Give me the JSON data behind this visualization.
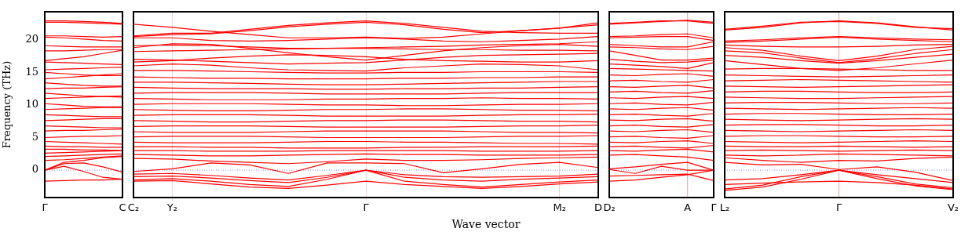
{
  "chart_data": [
    {
      "type": "line",
      "ylabel": "Frequency (THz)",
      "categories": [
        "Γ",
        null,
        null,
        null,
        "C"
      ],
      "ylim": [
        -4.2,
        24.3
      ],
      "yticks": [
        0,
        5,
        10,
        15,
        20
      ],
      "marker": "none",
      "ref_lines": [
        {
          "axis": "y",
          "value": 0,
          "color": "#8080ff",
          "line_style": "dotted"
        }
      ],
      "series": [
        {
          "color": "#ff0000",
          "values": [
            22.9,
            22.9,
            22.8,
            22.7,
            22.5
          ]
        },
        {
          "color": "#ff0000",
          "values": [
            22.7,
            22.7,
            22.6,
            22.5,
            22.4
          ]
        },
        {
          "color": "#ff0000",
          "values": [
            20.6,
            20.6,
            20.5,
            20.4,
            20.5
          ]
        },
        {
          "color": "#ff0000",
          "values": [
            20.4,
            20.3,
            20.1,
            19.9,
            19.8
          ]
        },
        {
          "color": "#ff0000",
          "values": [
            19.1,
            19.0,
            18.9,
            18.9,
            18.9
          ]
        },
        {
          "color": "#ff0000",
          "values": [
            18.3,
            18.3,
            18.4,
            18.5,
            18.5
          ]
        },
        {
          "color": "#ff0000",
          "values": [
            16.8,
            17.1,
            17.4,
            17.9,
            18.4
          ]
        },
        {
          "color": "#ff0000",
          "values": [
            16.6,
            16.5,
            16.4,
            16.3,
            16.2
          ]
        },
        {
          "color": "#ff0000",
          "values": [
            15.4,
            15.5,
            15.6,
            15.7,
            15.8
          ]
        },
        {
          "color": "#ff0000",
          "values": [
            15.0,
            14.8,
            14.6,
            14.5,
            14.5
          ]
        },
        {
          "color": "#ff0000",
          "values": [
            14.0,
            14.2,
            14.4,
            14.6,
            14.8
          ]
        },
        {
          "color": "#ff0000",
          "values": [
            13.4,
            13.2,
            13.0,
            12.9,
            12.9
          ]
        },
        {
          "color": "#ff0000",
          "values": [
            12.5,
            12.6,
            12.6,
            12.7,
            12.8
          ]
        },
        {
          "color": "#ff0000",
          "values": [
            11.8,
            11.6,
            11.4,
            11.3,
            11.2
          ]
        },
        {
          "color": "#ff0000",
          "values": [
            11.0,
            11.1,
            11.2,
            11.3,
            11.4
          ]
        },
        {
          "color": "#ff0000",
          "values": [
            10.2,
            10.0,
            9.8,
            9.7,
            9.7
          ]
        },
        {
          "color": "#ff0000",
          "values": [
            9.3,
            9.4,
            9.5,
            9.6,
            9.6
          ]
        },
        {
          "color": "#ff0000",
          "values": [
            8.5,
            8.4,
            8.3,
            8.2,
            8.2
          ]
        },
        {
          "color": "#ff0000",
          "values": [
            7.6,
            7.7,
            7.8,
            7.9,
            7.9
          ]
        },
        {
          "color": "#ff0000",
          "values": [
            6.8,
            6.7,
            6.6,
            6.5,
            6.5
          ]
        },
        {
          "color": "#ff0000",
          "values": [
            6.0,
            6.1,
            6.1,
            6.2,
            6.3
          ]
        },
        {
          "color": "#ff0000",
          "values": [
            5.0,
            5.1,
            5.2,
            5.2,
            5.3
          ]
        },
        {
          "color": "#ff0000",
          "values": [
            4.4,
            4.3,
            4.2,
            4.1,
            4.0
          ]
        },
        {
          "color": "#ff0000",
          "values": [
            3.7,
            3.6,
            3.6,
            3.5,
            3.5
          ]
        },
        {
          "color": "#ff0000",
          "values": [
            3.2,
            3.2,
            3.1,
            3.1,
            3.0
          ]
        },
        {
          "color": "#ff0000",
          "values": [
            2.6,
            2.7,
            2.8,
            2.9,
            3.0
          ]
        },
        {
          "color": "#ff0000",
          "values": [
            2.1,
            2.2,
            2.3,
            2.4,
            2.5
          ]
        },
        {
          "color": "#ff0000",
          "values": [
            1.5,
            1.6,
            1.8,
            2.0,
            2.2
          ]
        },
        {
          "color": "#ff0000",
          "values": [
            0,
            1.2,
            1.5,
            1.9,
            2.1
          ]
        },
        {
          "color": "#ff0000",
          "values": [
            0,
            1.0,
            1.1,
            0.5,
            -0.3
          ]
        },
        {
          "color": "#ff0000",
          "values": [
            0,
            0.6,
            -0.2,
            -1.1,
            -1.4
          ]
        },
        {
          "color": "#ff0000",
          "values": [
            -1.7,
            -1.6,
            -1.5,
            -1.5,
            -1.4
          ]
        }
      ]
    },
    {
      "type": "line",
      "xlabel": "Wave vector",
      "categories": [
        "C₂",
        "Y₂",
        null,
        null,
        null,
        null,
        "Γ",
        null,
        null,
        null,
        null,
        "M₂",
        "D"
      ],
      "ylim": [
        -4.2,
        24.3
      ],
      "tick_labels": "x",
      "grid": "x",
      "marker": "none",
      "ref_lines": [
        {
          "axis": "y",
          "value": 0,
          "color": "#8080ff",
          "line_style": "dotted"
        }
      ],
      "series": [
        {
          "color": "#ff0000",
          "values": [
            22.4,
            21.9,
            21.3,
            20.8,
            20.3,
            20.3,
            20.4,
            20.2,
            20.4,
            20.9,
            21.4,
            21.8,
            22.3
          ]
        },
        {
          "color": "#ff0000",
          "values": [
            20.6,
            21.0,
            21.0,
            21.6,
            22.2,
            22.6,
            22.9,
            22.5,
            21.9,
            21.3,
            21.1,
            21.0,
            21.0
          ]
        },
        {
          "color": "#ff0000",
          "values": [
            20.5,
            20.8,
            20.9,
            21.4,
            22.0,
            22.4,
            22.7,
            22.3,
            21.6,
            21.1,
            21.4,
            21.8,
            22.6
          ]
        },
        {
          "color": "#ff0000",
          "values": [
            20.3,
            20.3,
            19.9,
            19.8,
            19.9,
            20.1,
            20.3,
            20.1,
            19.8,
            19.7,
            19.9,
            20.1,
            20.5
          ]
        },
        {
          "color": "#ff0000",
          "values": [
            18.8,
            19.4,
            19.3,
            18.7,
            18.0,
            17.4,
            16.9,
            17.6,
            18.3,
            18.8,
            19.1,
            19.3,
            19.0
          ]
        },
        {
          "color": "#ff0000",
          "values": [
            19.1,
            19.2,
            19.1,
            18.9,
            18.7,
            18.7,
            18.8,
            18.9,
            19.0,
            19.2,
            19.3,
            19.4,
            19.7
          ]
        },
        {
          "color": "#ff0000",
          "values": [
            18.2,
            18.3,
            18.4,
            18.5,
            18.6,
            18.7,
            18.7,
            18.6,
            18.5,
            18.5,
            18.4,
            18.4,
            18.3
          ]
        },
        {
          "color": "#ff0000",
          "values": [
            16.6,
            16.8,
            17.2,
            17.5,
            17.7,
            17.6,
            17.4,
            17.0,
            16.8,
            16.7,
            16.6,
            16.6,
            16.8
          ]
        },
        {
          "color": "#ff0000",
          "values": [
            17.0,
            16.9,
            16.7,
            16.5,
            16.3,
            16.4,
            16.5,
            16.9,
            17.3,
            17.6,
            17.7,
            17.8,
            17.9
          ]
        },
        {
          "color": "#ff0000",
          "values": [
            16.0,
            16.3,
            16.1,
            15.7,
            15.4,
            15.3,
            15.2,
            15.7,
            16.0,
            16.3,
            16.2,
            16.0,
            15.4
          ]
        },
        {
          "color": "#ff0000",
          "values": [
            15.3,
            15.3,
            15.2,
            15.1,
            15.0,
            14.9,
            14.9,
            15.0,
            15.0,
            15.1,
            15.1,
            15.1,
            15.0
          ]
        },
        {
          "color": "#ff0000",
          "values": [
            14.3,
            14.2,
            14.1,
            14.1,
            14.0,
            14.0,
            14.0,
            14.1,
            14.1,
            14.2,
            14.2,
            14.3,
            14.3
          ]
        },
        {
          "color": "#ff0000",
          "values": [
            13.5,
            13.5,
            13.4,
            13.3,
            13.2,
            13.1,
            13.1,
            13.2,
            13.3,
            13.4,
            13.5,
            13.6,
            13.6
          ]
        },
        {
          "color": "#ff0000",
          "values": [
            12.7,
            12.6,
            12.5,
            12.5,
            12.5,
            12.4,
            12.4,
            12.5,
            12.5,
            12.6,
            12.6,
            12.7,
            12.8
          ]
        },
        {
          "color": "#ff0000",
          "values": [
            11.8,
            11.9,
            11.9,
            11.9,
            11.8,
            11.7,
            11.7,
            11.7,
            11.7,
            11.8,
            11.9,
            11.9,
            11.9
          ]
        },
        {
          "color": "#ff0000",
          "values": [
            11.0,
            10.9,
            10.8,
            10.8,
            10.8,
            10.9,
            10.9,
            11.0,
            11.0,
            11.1,
            11.0,
            11.0,
            10.9
          ]
        },
        {
          "color": "#ff0000",
          "values": [
            10.1,
            10.2,
            10.2,
            10.2,
            10.1,
            10.0,
            10.0,
            9.9,
            9.9,
            10.0,
            10.1,
            10.1,
            10.2
          ]
        },
        {
          "color": "#ff0000",
          "values": [
            9.3,
            9.2,
            9.1,
            9.1,
            9.2,
            9.3,
            9.3,
            9.4,
            9.4,
            9.3,
            9.2,
            9.2,
            9.1
          ]
        },
        {
          "color": "#ff0000",
          "values": [
            8.4,
            8.5,
            8.5,
            8.5,
            8.4,
            8.3,
            8.3,
            8.3,
            8.3,
            8.4,
            8.5,
            8.5,
            8.6
          ]
        },
        {
          "color": "#ff0000",
          "values": [
            7.6,
            7.5,
            7.4,
            7.4,
            7.5,
            7.6,
            7.6,
            7.7,
            7.7,
            7.6,
            7.5,
            7.5,
            7.4
          ]
        },
        {
          "color": "#ff0000",
          "values": [
            6.7,
            6.8,
            6.8,
            6.8,
            6.7,
            6.6,
            6.6,
            6.6,
            6.6,
            6.7,
            6.8,
            6.8,
            6.9
          ]
        },
        {
          "color": "#ff0000",
          "values": [
            5.9,
            5.8,
            5.8,
            5.8,
            5.9,
            6.0,
            6.0,
            6.0,
            6.0,
            5.9,
            5.8,
            5.8,
            5.7
          ]
        },
        {
          "color": "#ff0000",
          "values": [
            5.1,
            5.2,
            5.2,
            5.2,
            5.1,
            5.0,
            5.0,
            5.0,
            5.0,
            5.1,
            5.2,
            5.2,
            5.3
          ]
        },
        {
          "color": "#ff0000",
          "values": [
            4.3,
            4.2,
            4.2,
            4.2,
            4.3,
            4.4,
            4.4,
            4.3,
            4.3,
            4.2,
            4.1,
            4.1,
            4.0
          ]
        },
        {
          "color": "#ff0000",
          "values": [
            3.6,
            3.6,
            3.5,
            3.5,
            3.4,
            3.4,
            3.4,
            3.5,
            3.5,
            3.6,
            3.6,
            3.6,
            3.7
          ]
        },
        {
          "color": "#ff0000",
          "values": [
            3.0,
            3.0,
            2.9,
            2.9,
            2.9,
            3.0,
            3.0,
            3.0,
            3.0,
            2.9,
            2.9,
            2.9,
            3.0
          ]
        },
        {
          "color": "#ff0000",
          "values": [
            2.4,
            2.3,
            2.2,
            2.2,
            2.3,
            2.4,
            2.5,
            2.4,
            2.4,
            2.3,
            2.3,
            2.3,
            2.4
          ]
        },
        {
          "color": "#ff0000",
          "values": [
            1.8,
            1.7,
            1.4,
            1.2,
            1.0,
            1.3,
            1.7,
            1.5,
            1.5,
            1.6,
            1.8,
            1.9,
            2.0
          ]
        },
        {
          "color": "#ff0000",
          "values": [
            -0.2,
            0.2,
            1.1,
            0.8,
            -0.5,
            1.1,
            1.1,
            1.0,
            -0.4,
            0.2,
            0.9,
            1.2,
            0.4
          ]
        },
        {
          "color": "#ff0000",
          "values": [
            -0.6,
            -0.5,
            -0.8,
            -1.2,
            -1.5,
            -0.8,
            0.0,
            -0.7,
            -1.0,
            -1.1,
            -1.0,
            -0.9,
            -0.6
          ]
        },
        {
          "color": "#ff0000",
          "values": [
            -1.0,
            -0.9,
            -1.2,
            -1.6,
            -1.9,
            -1.1,
            0.0,
            -1.1,
            -1.5,
            -1.7,
            -1.4,
            -1.2,
            -1.0
          ]
        },
        {
          "color": "#ff0000",
          "values": [
            -1.5,
            -1.3,
            -1.7,
            -2.2,
            -2.5,
            -1.4,
            0.0,
            -1.7,
            -2.2,
            -2.6,
            -2.2,
            -1.8,
            -1.5
          ]
        },
        {
          "color": "#ff0000",
          "values": [
            -1.7,
            -1.6,
            -2.1,
            -2.6,
            -2.8,
            -2.3,
            -1.7,
            -2.2,
            -2.5,
            -2.8,
            -2.5,
            -2.1,
            -1.8
          ]
        }
      ]
    },
    {
      "type": "line",
      "categories": [
        "D₂",
        null,
        null,
        "A",
        "Γ"
      ],
      "ylim": [
        -4.2,
        24.3
      ],
      "tick_labels": "x",
      "marker": "none",
      "ref_lines": [
        {
          "axis": "y",
          "value": 0,
          "color": "#8080ff",
          "line_style": "dotted"
        },
        {
          "axis": "x",
          "value": "A",
          "color": "#e8a0a0",
          "line_style": "solid"
        }
      ],
      "series": [
        {
          "color": "#ff0000",
          "values": [
            22.4,
            22.6,
            22.8,
            23.0,
            22.7
          ]
        },
        {
          "color": "#ff0000",
          "values": [
            22.5,
            22.7,
            22.9,
            22.9,
            22.5
          ]
        },
        {
          "color": "#ff0000",
          "values": [
            20.5,
            20.6,
            20.8,
            20.9,
            20.3
          ]
        },
        {
          "color": "#ff0000",
          "values": [
            20.3,
            20.4,
            20.5,
            20.5,
            19.9
          ]
        },
        {
          "color": "#ff0000",
          "values": [
            19.3,
            19.1,
            18.9,
            18.9,
            19.7
          ]
        },
        {
          "color": "#ff0000",
          "values": [
            18.9,
            18.8,
            18.6,
            18.5,
            19.0
          ]
        },
        {
          "color": "#ff0000",
          "values": [
            18.3,
            17.6,
            16.9,
            16.9,
            17.2
          ]
        },
        {
          "color": "#ff0000",
          "values": [
            17.0,
            16.7,
            16.5,
            16.6,
            16.9
          ]
        },
        {
          "color": "#ff0000",
          "values": [
            16.3,
            16.1,
            15.9,
            15.6,
            16.5
          ]
        },
        {
          "color": "#ff0000",
          "values": [
            15.6,
            15.5,
            15.4,
            15.3,
            15.2
          ]
        },
        {
          "color": "#ff0000",
          "values": [
            14.6,
            14.5,
            14.7,
            14.8,
            14.4
          ]
        },
        {
          "color": "#ff0000",
          "values": [
            13.7,
            13.8,
            13.6,
            13.5,
            13.9
          ]
        },
        {
          "color": "#ff0000",
          "values": [
            12.8,
            12.7,
            12.9,
            13.0,
            12.6
          ]
        },
        {
          "color": "#ff0000",
          "values": [
            12.0,
            12.1,
            11.9,
            11.8,
            12.2
          ]
        },
        {
          "color": "#ff0000",
          "values": [
            11.1,
            11.0,
            11.2,
            11.3,
            11.0
          ]
        },
        {
          "color": "#ff0000",
          "values": [
            10.2,
            10.3,
            10.1,
            10.0,
            10.4
          ]
        },
        {
          "color": "#ff0000",
          "values": [
            9.4,
            9.3,
            9.5,
            9.6,
            9.2
          ]
        },
        {
          "color": "#ff0000",
          "values": [
            8.5,
            8.6,
            8.4,
            8.3,
            8.7
          ]
        },
        {
          "color": "#ff0000",
          "values": [
            7.7,
            7.6,
            7.8,
            7.9,
            7.5
          ]
        },
        {
          "color": "#ff0000",
          "values": [
            6.8,
            6.9,
            6.7,
            6.6,
            7.0
          ]
        },
        {
          "color": "#ff0000",
          "values": [
            6.0,
            5.9,
            6.1,
            6.2,
            5.8
          ]
        },
        {
          "color": "#ff0000",
          "values": [
            5.1,
            5.2,
            5.0,
            4.9,
            5.3
          ]
        },
        {
          "color": "#ff0000",
          "values": [
            4.3,
            4.2,
            4.4,
            4.5,
            4.1
          ]
        },
        {
          "color": "#ff0000",
          "values": [
            3.6,
            3.7,
            3.5,
            3.4,
            3.8
          ]
        },
        {
          "color": "#ff0000",
          "values": [
            3.0,
            2.9,
            3.1,
            3.2,
            2.8
          ]
        },
        {
          "color": "#ff0000",
          "values": [
            2.3,
            2.4,
            2.2,
            2.0,
            1.5
          ]
        },
        {
          "color": "#ff0000",
          "values": [
            0.2,
            0.5,
            0.9,
            1.2,
            0.0
          ]
        },
        {
          "color": "#ff0000",
          "values": [
            0.1,
            -0.5,
            0.6,
            0.0,
            0.0
          ]
        },
        {
          "color": "#ff0000",
          "values": [
            -0.9,
            -0.8,
            -0.7,
            -0.6,
            -1.6
          ]
        },
        {
          "color": "#ff0000",
          "values": [
            -1.7,
            -1.5,
            -1.1,
            -0.7,
            0.0
          ]
        }
      ]
    },
    {
      "type": "line",
      "categories": [
        "L₂",
        null,
        null,
        "Γ",
        null,
        null,
        "V₂"
      ],
      "ylim": [
        -4.2,
        24.3
      ],
      "tick_labels": "x",
      "marker": "none",
      "ref_lines": [
        {
          "axis": "y",
          "value": 0,
          "color": "#8080ff",
          "line_style": "dotted"
        },
        {
          "axis": "x",
          "value": "Γ",
          "color": "#e8a0a0",
          "line_style": "solid"
        }
      ],
      "series": [
        {
          "color": "#ff0000",
          "values": [
            21.5,
            21.9,
            22.6,
            22.9,
            22.6,
            22.0,
            21.5
          ]
        },
        {
          "color": "#ff0000",
          "values": [
            21.6,
            22.1,
            22.7,
            22.8,
            22.5,
            21.9,
            21.7
          ]
        },
        {
          "color": "#ff0000",
          "values": [
            19.8,
            20.0,
            20.3,
            20.5,
            20.3,
            20.1,
            20.0
          ]
        },
        {
          "color": "#ff0000",
          "values": [
            19.6,
            19.8,
            20.1,
            20.4,
            20.1,
            19.9,
            19.7
          ]
        },
        {
          "color": "#ff0000",
          "values": [
            19.2,
            19.0,
            18.9,
            18.9,
            19.0,
            19.2,
            19.3
          ]
        },
        {
          "color": "#ff0000",
          "values": [
            18.8,
            18.4,
            17.5,
            16.8,
            17.5,
            18.5,
            19.0
          ]
        },
        {
          "color": "#ff0000",
          "values": [
            18.3,
            18.0,
            17.2,
            16.5,
            17.1,
            17.9,
            18.5
          ]
        },
        {
          "color": "#ff0000",
          "values": [
            17.6,
            17.3,
            16.8,
            16.4,
            16.8,
            17.3,
            17.8
          ]
        },
        {
          "color": "#ff0000",
          "values": [
            16.8,
            16.2,
            15.6,
            15.3,
            15.7,
            16.3,
            16.9
          ]
        },
        {
          "color": "#ff0000",
          "values": [
            15.5,
            15.6,
            15.6,
            15.5,
            15.4,
            15.3,
            15.3
          ]
        },
        {
          "color": "#ff0000",
          "values": [
            14.6,
            14.5,
            14.4,
            14.3,
            14.4,
            14.5,
            14.6
          ]
        },
        {
          "color": "#ff0000",
          "values": [
            13.7,
            13.8,
            13.9,
            13.8,
            13.7,
            13.6,
            13.5
          ]
        },
        {
          "color": "#ff0000",
          "values": [
            12.9,
            12.8,
            12.7,
            12.8,
            12.9,
            13.0,
            13.1
          ]
        },
        {
          "color": "#ff0000",
          "values": [
            12.0,
            12.1,
            12.1,
            12.0,
            11.9,
            11.9,
            12.0
          ]
        },
        {
          "color": "#ff0000",
          "values": [
            11.2,
            11.1,
            11.0,
            11.0,
            11.1,
            11.2,
            11.3
          ]
        },
        {
          "color": "#ff0000",
          "values": [
            10.3,
            10.4,
            10.4,
            10.3,
            10.2,
            10.2,
            10.3
          ]
        },
        {
          "color": "#ff0000",
          "values": [
            9.5,
            9.4,
            9.3,
            9.4,
            9.5,
            9.6,
            9.5
          ]
        },
        {
          "color": "#ff0000",
          "values": [
            8.6,
            8.7,
            8.7,
            8.6,
            8.5,
            8.5,
            8.6
          ]
        },
        {
          "color": "#ff0000",
          "values": [
            7.8,
            7.7,
            7.6,
            7.7,
            7.8,
            7.9,
            7.8
          ]
        },
        {
          "color": "#ff0000",
          "values": [
            6.9,
            7.0,
            7.0,
            6.9,
            6.8,
            6.8,
            6.9
          ]
        },
        {
          "color": "#ff0000",
          "values": [
            6.1,
            6.0,
            5.9,
            6.0,
            6.1,
            6.2,
            6.1
          ]
        },
        {
          "color": "#ff0000",
          "values": [
            5.2,
            5.3,
            5.3,
            5.2,
            5.1,
            5.1,
            5.2
          ]
        },
        {
          "color": "#ff0000",
          "values": [
            4.4,
            4.3,
            4.2,
            4.3,
            4.4,
            4.5,
            4.4
          ]
        },
        {
          "color": "#ff0000",
          "values": [
            3.7,
            3.6,
            3.6,
            3.7,
            3.6,
            3.5,
            3.6
          ]
        },
        {
          "color": "#ff0000",
          "values": [
            3.0,
            3.1,
            3.0,
            2.9,
            3.0,
            3.1,
            3.0
          ]
        },
        {
          "color": "#ff0000",
          "values": [
            2.3,
            2.2,
            2.3,
            2.5,
            2.4,
            2.3,
            2.2
          ]
        },
        {
          "color": "#ff0000",
          "values": [
            1.9,
            1.5,
            1.2,
            1.5,
            1.4,
            1.8,
            2.0
          ]
        },
        {
          "color": "#ff0000",
          "values": [
            1.2,
            0.8,
            0.9,
            0.1,
            0.5,
            -0.3,
            -1.6
          ]
        },
        {
          "color": "#ff0000",
          "values": [
            -1.5,
            -1.3,
            -0.7,
            0.0,
            -0.7,
            -1.3,
            -1.9
          ]
        },
        {
          "color": "#ff0000",
          "values": [
            -2.9,
            -2.3,
            -1.0,
            0.0,
            -1.0,
            -2.1,
            -2.7
          ]
        },
        {
          "color": "#ff0000",
          "values": [
            -3.1,
            -2.6,
            -1.4,
            0.0,
            -1.3,
            -2.4,
            -3.0
          ]
        },
        {
          "color": "#ff0000",
          "values": [
            -2.2,
            -2.0,
            -1.8,
            -1.7,
            -1.9,
            -2.3,
            -2.9
          ]
        }
      ]
    }
  ]
}
